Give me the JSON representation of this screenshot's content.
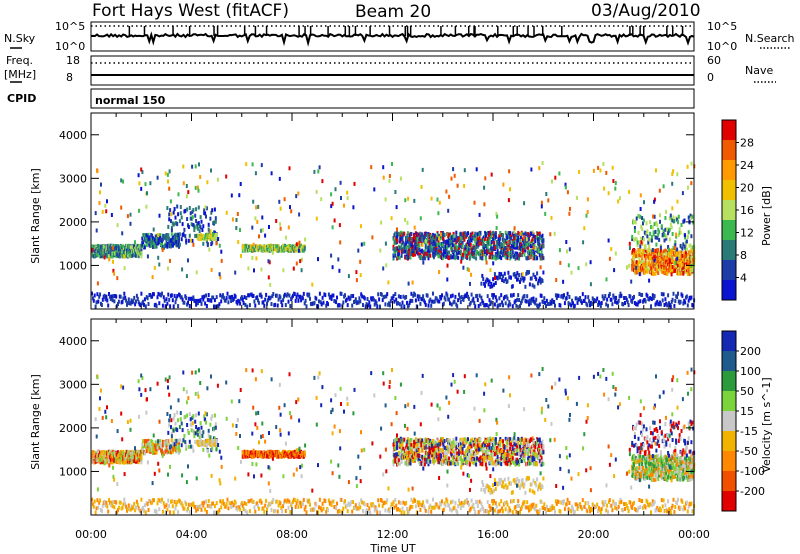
{
  "header": {
    "radar": "Fort Hays West (fitACF)",
    "beam": "Beam 20",
    "date": "03/Aug/2010"
  },
  "strips": {
    "nsky_label": "N.Sky",
    "nsky_ticks": [
      "10^5",
      "10^0"
    ],
    "nsearch_label": "N.Search",
    "nsearch_ticks": [
      "10^5",
      "10^0"
    ],
    "freq_label_1": "Freq.",
    "freq_label_2": "[MHz]",
    "freq_ticks": [
      "18",
      "8"
    ],
    "nave_label": "Nave",
    "nave_ticks": [
      "60",
      "0"
    ],
    "cpid_label": "CPID",
    "cpid_value": "normal 150"
  },
  "axes": {
    "ylabel": "Slant Range [km]",
    "xlabel": "Time UT",
    "y_ticks": [
      "4000",
      "3000",
      "2000",
      "1000"
    ],
    "x_ticks": [
      "00:00",
      "04:00",
      "08:00",
      "12:00",
      "16:00",
      "20:00",
      "00:00"
    ]
  },
  "colorbars": {
    "power": {
      "label": "Power [dB]",
      "ticks": [
        "28",
        "24",
        "20",
        "16",
        "12",
        "8",
        "4"
      ],
      "colors": [
        "#e00000",
        "#f05a00",
        "#ff9a00",
        "#f0c000",
        "#b8e060",
        "#3cb850",
        "#2a7a78",
        "#1e3ca8",
        "#0a14d0"
      ]
    },
    "velocity": {
      "label": "Velocity [m s^-1]",
      "ticks": [
        "200",
        "100",
        "50",
        "15",
        "-15",
        "-50",
        "-100",
        "-200"
      ],
      "colors": [
        "#1428b4",
        "#1e5a8c",
        "#2a9a3c",
        "#7cd43c",
        "#c8c8c8",
        "#f0b400",
        "#ff8800",
        "#f05000",
        "#e00000"
      ]
    }
  },
  "chart_data": [
    {
      "type": "heatmap",
      "title": "Fort Hays West (fitACF) Beam 20 03/Aug/2010",
      "quantity": "Power",
      "xlabel": "Time UT",
      "ylabel": "Slant Range [km]",
      "xlim": [
        "00:00",
        "24:00"
      ],
      "ylim": [
        0,
        4500
      ],
      "colorbar_label": "Power [dB]",
      "colorbar_ticks": [
        28,
        24,
        20,
        16,
        12,
        8,
        4
      ],
      "series": [
        {
          "time_range_h": [
            0.0,
            2.0
          ],
          "range_km": [
            1250,
            1500
          ],
          "value_db": 8
        },
        {
          "time_range_h": [
            2.0,
            3.5
          ],
          "range_km": [
            1450,
            1700
          ],
          "value_db": 6
        },
        {
          "time_range_h": [
            4.2,
            5.0
          ],
          "range_km": [
            1650,
            1750
          ],
          "value_db": 14
        },
        {
          "time_range_h": [
            6.0,
            8.5
          ],
          "range_km": [
            1380,
            1500
          ],
          "value_db": 12
        },
        {
          "time_range_h": [
            12.0,
            18.0
          ],
          "range_km": [
            1200,
            1800
          ],
          "value_db": 6
        },
        {
          "time_range_h": [
            21.5,
            24.0
          ],
          "range_km": [
            850,
            1400
          ],
          "value_db": 22
        }
      ]
    },
    {
      "type": "heatmap",
      "quantity": "Velocity",
      "xlabel": "Time UT",
      "ylabel": "Slant Range [km]",
      "xlim": [
        "00:00",
        "24:00"
      ],
      "ylim": [
        0,
        4500
      ],
      "colorbar_label": "Velocity [m s^-1]",
      "colorbar_ticks": [
        200,
        100,
        50,
        15,
        -15,
        -50,
        -100,
        -200
      ],
      "series": [
        {
          "time_range_h": [
            0.0,
            2.0
          ],
          "range_km": [
            1250,
            1500
          ],
          "value_ms": -40
        },
        {
          "time_range_h": [
            3.0,
            5.0
          ],
          "range_km": [
            1500,
            2300
          ],
          "value_ms": 20
        },
        {
          "time_range_h": [
            6.0,
            8.5
          ],
          "range_km": [
            1380,
            1500
          ],
          "value_ms": -120
        },
        {
          "time_range_h": [
            12.0,
            18.0
          ],
          "range_km": [
            1200,
            1700
          ],
          "value_ms": 0
        },
        {
          "time_range_h": [
            21.5,
            24.0
          ],
          "range_km": [
            850,
            1400
          ],
          "value_ms": 40
        }
      ]
    }
  ]
}
